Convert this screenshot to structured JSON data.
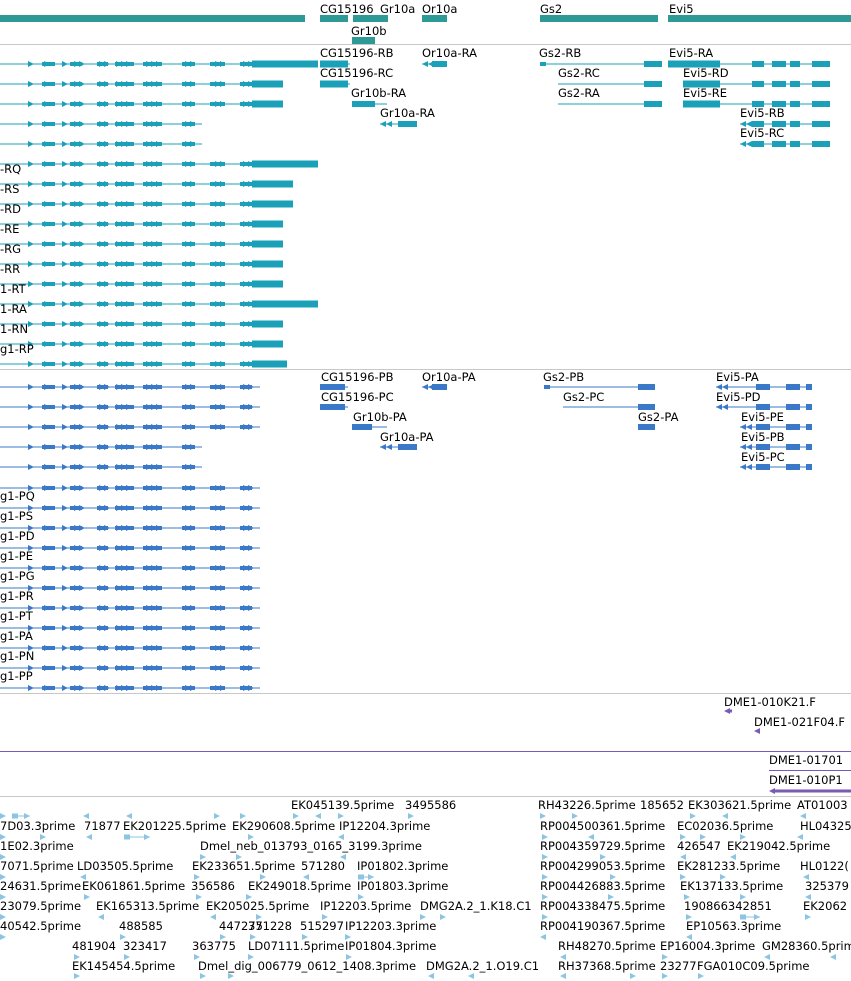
{
  "tracks": {
    "gene_labels": [
      "CG15196",
      "Gr10a",
      "Or10a",
      "Gr10b",
      "Gs2",
      "Evi5"
    ],
    "transcript_labels": [
      "CG15196-RB",
      "CG15196-RC",
      "Or10a-RA",
      "Gr10b-RA",
      "Gr10a-RA",
      "Gs2-RB",
      "Gs2-RC",
      "Gs2-RA",
      "Evi5-RA",
      "Evi5-RD",
      "Evi5-RE",
      "Evi5-RB",
      "Evi5-RC",
      "-RQ",
      "-RS",
      "-RD",
      "-RE",
      "-RG",
      "-RR",
      "1-RT",
      "1-RA",
      "1-RN",
      "g1-RP"
    ],
    "protein_labels": [
      "CG15196-PB",
      "CG15196-PC",
      "Or10a-PA",
      "Gr10b-PA",
      "Gr10a-PA",
      "Gs2-PB",
      "Gs2-PC",
      "Gs2-PA",
      "Evi5-PA",
      "Evi5-PD",
      "Evi5-PE",
      "Evi5-PB",
      "Evi5-PC",
      "g1-PQ",
      "g1-PS",
      "g1-PD",
      "g1-PE",
      "g1-PG",
      "g1-PR",
      "g1-PT",
      "g1-PA",
      "g1-PN",
      "g1-PP"
    ],
    "clone_labels": [
      "DME1-010K21.F",
      "DME1-021F04.F",
      "DME1-01701",
      "DME1-010P1"
    ],
    "est_labels": [
      "EK045139.5prime",
      "3495586",
      "RH43226.5prime",
      "185652",
      "EK303621.5prime",
      "AT01003",
      "7D03.3prime",
      "71877",
      "EK201225.5prime",
      "EK290608.5prime",
      "IP12204.3prime",
      "RP004500361.5prime",
      "EC02036.5prime",
      "HL04325.",
      "1E02.3prime",
      "Dmel_neb_013793_0165_3199.3prime",
      "RP004359729.5prime",
      "426547",
      "EK219042.5prime",
      "7071.5prime",
      "LD03505.5prime",
      "EK233651.5prime",
      "571280",
      "IP01802.3prime",
      "RP004299053.5prime",
      "EK281233.5prime",
      "HL0122(",
      "24631.5prime",
      "EK061861.5prime",
      "356586",
      "EK249018.5prime",
      "IP01803.3prime",
      "RP004426883.5prime",
      "EK137133.5prime",
      "325379",
      "23079.5prime",
      "EK165313.5prime",
      "EK205025.5prime",
      "IP12203.5prime",
      "DMG2A.2_1.K18.C1",
      "RP004338475.5prime",
      "190866342851",
      "EK2062",
      "40542.5prime",
      "488585",
      "447275",
      "371228",
      "515297",
      "IP12203.3prime",
      "RP004190367.5prime",
      "EP10563.3prime",
      "481904",
      "323417",
      "363775",
      "LD07111.5prime",
      "IP01804.3prime",
      "RH48270.5prime",
      "EP16004.3prime",
      "GM28360.5prime",
      "EK145454.5prime",
      "Dmel_dig_006779_0612_1408.3prime",
      "DMG2A.2_1.O19.C1",
      "RH37368.5prime",
      "23277",
      "FGA010C09.5prime"
    ]
  },
  "colors": {
    "gene": "#2d9a96",
    "transcript": "#1aa0b8",
    "protein": "#3a78c8",
    "clone": "#7a5ab4",
    "est": "#8cc4e4",
    "divider": "#c8c8c8"
  }
}
